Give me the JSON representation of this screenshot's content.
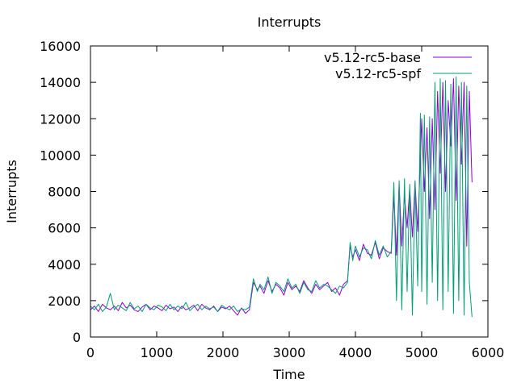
{
  "chart_data": {
    "type": "line",
    "title": "Interrupts",
    "xlabel": "Time",
    "ylabel": "Interrupts",
    "xlim": [
      0,
      6000
    ],
    "ylim": [
      0,
      16000
    ],
    "xticks": [
      0,
      1000,
      2000,
      3000,
      4000,
      5000,
      6000
    ],
    "yticks": [
      0,
      2000,
      4000,
      6000,
      8000,
      10000,
      12000,
      14000,
      16000
    ],
    "grid": false,
    "legend": "top-right",
    "series": [
      {
        "name": "v5.12-rc5-base",
        "color": "#9400d3",
        "x": [
          0,
          60,
          120,
          180,
          240,
          300,
          360,
          420,
          480,
          540,
          600,
          660,
          720,
          780,
          840,
          900,
          960,
          1020,
          1080,
          1140,
          1200,
          1260,
          1320,
          1380,
          1440,
          1500,
          1560,
          1620,
          1680,
          1740,
          1800,
          1860,
          1920,
          1980,
          2040,
          2100,
          2160,
          2220,
          2280,
          2340,
          2400,
          2460,
          2520,
          2560,
          2620,
          2680,
          2740,
          2800,
          2860,
          2920,
          2980,
          3040,
          3100,
          3160,
          3220,
          3280,
          3340,
          3400,
          3460,
          3520,
          3580,
          3640,
          3700,
          3760,
          3820,
          3880,
          3920,
          3960,
          4000,
          4060,
          4120,
          4180,
          4240,
          4300,
          4360,
          4420,
          4480,
          4540,
          4580,
          4620,
          4660,
          4700,
          4740,
          4780,
          4820,
          4860,
          4900,
          4940,
          4980,
          5000,
          5040,
          5080,
          5120,
          5160,
          5200,
          5240,
          5280,
          5320,
          5360,
          5400,
          5440,
          5480,
          5520,
          5560,
          5600,
          5640,
          5680,
          5720,
          5760
        ],
        "y": [
          1500,
          1700,
          1400,
          1800,
          1600,
          1500,
          1700,
          1450,
          1900,
          1600,
          1750,
          1500,
          1400,
          1650,
          1800,
          1500,
          1700,
          1600,
          1450,
          1750,
          1550,
          1650,
          1400,
          1700,
          1500,
          1600,
          1750,
          1450,
          1800,
          1600,
          1500,
          1700,
          1400,
          1650,
          1550,
          1700,
          1450,
          1200,
          1600,
          1300,
          1500,
          3000,
          2600,
          2800,
          2400,
          3100,
          2500,
          2900,
          2700,
          2300,
          3000,
          2600,
          2800,
          2500,
          3100,
          2700,
          2400,
          2900,
          2600,
          2800,
          3000,
          2500,
          2700,
          2300,
          2900,
          3100,
          5000,
          4400,
          4800,
          4200,
          5100,
          4600,
          4500,
          5200,
          4300,
          4900,
          4700,
          4600,
          7800,
          4500,
          8400,
          5000,
          7800,
          6000,
          8200,
          5500,
          8500,
          5800,
          9800,
          12000,
          8000,
          11500,
          6500,
          12000,
          7000,
          13500,
          9000,
          14000,
          8000,
          13000,
          10500,
          14200,
          7500,
          13800,
          9500,
          14000,
          5000,
          13500,
          8500
        ]
      },
      {
        "name": "v5.12-rc5-spf",
        "color": "#009e73",
        "x": [
          0,
          60,
          120,
          180,
          240,
          300,
          360,
          420,
          480,
          540,
          600,
          660,
          720,
          780,
          840,
          900,
          960,
          1020,
          1080,
          1140,
          1200,
          1260,
          1320,
          1380,
          1440,
          1500,
          1560,
          1620,
          1680,
          1740,
          1800,
          1860,
          1920,
          1980,
          2040,
          2100,
          2160,
          2220,
          2280,
          2340,
          2400,
          2460,
          2520,
          2560,
          2620,
          2680,
          2740,
          2800,
          2860,
          2920,
          2980,
          3040,
          3100,
          3160,
          3220,
          3280,
          3340,
          3400,
          3460,
          3520,
          3580,
          3640,
          3700,
          3760,
          3820,
          3880,
          3920,
          3960,
          4000,
          4060,
          4120,
          4180,
          4240,
          4300,
          4360,
          4420,
          4480,
          4540,
          4580,
          4620,
          4660,
          4700,
          4740,
          4780,
          4820,
          4860,
          4900,
          4940,
          4980,
          5000,
          5040,
          5080,
          5120,
          5160,
          5200,
          5240,
          5280,
          5320,
          5360,
          5400,
          5440,
          5480,
          5520,
          5560,
          5600,
          5640,
          5680,
          5720,
          5760
        ],
        "y": [
          1700,
          1500,
          1800,
          1400,
          1650,
          2400,
          1500,
          1750,
          1600,
          1450,
          1900,
          1550,
          1700,
          1400,
          1800,
          1600,
          1500,
          1750,
          1650,
          1450,
          1800,
          1500,
          1700,
          1550,
          1900,
          1450,
          1650,
          1800,
          1500,
          1700,
          1550,
          1650,
          1400,
          1750,
          1600,
          1500,
          1700,
          1400,
          1550,
          1500,
          1650,
          3200,
          2500,
          2900,
          2600,
          3300,
          2400,
          3000,
          2800,
          2500,
          3200,
          2700,
          2900,
          2400,
          3000,
          2600,
          2500,
          3100,
          2700,
          2900,
          2800,
          2600,
          2400,
          2800,
          2700,
          3000,
          5200,
          4200,
          5000,
          4400,
          4900,
          4800,
          4300,
          5300,
          4500,
          5000,
          4400,
          4700,
          8500,
          2000,
          8600,
          1500,
          8700,
          2500,
          8400,
          1200,
          8600,
          2800,
          12300,
          2500,
          12200,
          1800,
          12100,
          3000,
          14000,
          2000,
          14200,
          1500,
          14100,
          2500,
          13900,
          1300,
          14300,
          2000,
          14000,
          1200,
          13800,
          3000,
          1100
        ]
      }
    ]
  }
}
